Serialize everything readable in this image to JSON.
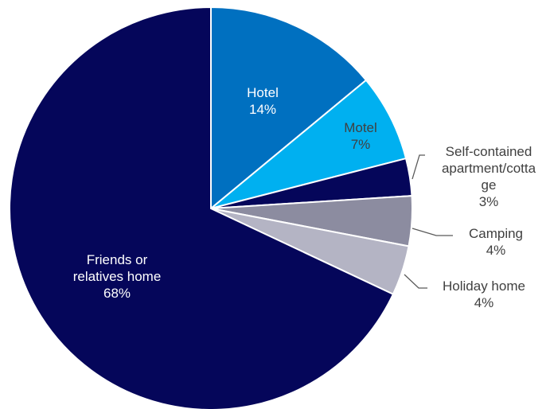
{
  "chart_data": {
    "type": "pie",
    "title": "",
    "slices": [
      {
        "name": "Hotel",
        "value": 14,
        "label": "14%",
        "color": "#0070c0"
      },
      {
        "name": "Motel",
        "value": 7,
        "label": "7%",
        "color": "#00b0f0"
      },
      {
        "name": "Self-contained apartment/cottage",
        "value": 3,
        "label": "3%",
        "color": "#05065a"
      },
      {
        "name": "Camping",
        "value": 4,
        "label": "4%",
        "color": "#8c8ca0"
      },
      {
        "name": "Holiday home",
        "value": 4,
        "label": "4%",
        "color": "#b4b4c4"
      },
      {
        "name": "Friends or relatives home",
        "value": 68,
        "label": "68%",
        "color": "#05065a"
      }
    ],
    "data_labels": [
      {
        "lines": [
          "Hotel",
          "14%"
        ]
      },
      {
        "lines": [
          "Motel",
          "7%"
        ]
      },
      {
        "lines": [
          "Self-contained",
          "apartment/cotta",
          "ge",
          "3%"
        ]
      },
      {
        "lines": [
          "Camping",
          "4%"
        ]
      },
      {
        "lines": [
          "Holiday home",
          "4%"
        ]
      },
      {
        "lines": [
          "Friends or",
          "relatives home",
          "68%"
        ]
      }
    ],
    "legend": false,
    "start_angle": "12 o'clock",
    "direction": "clockwise"
  }
}
